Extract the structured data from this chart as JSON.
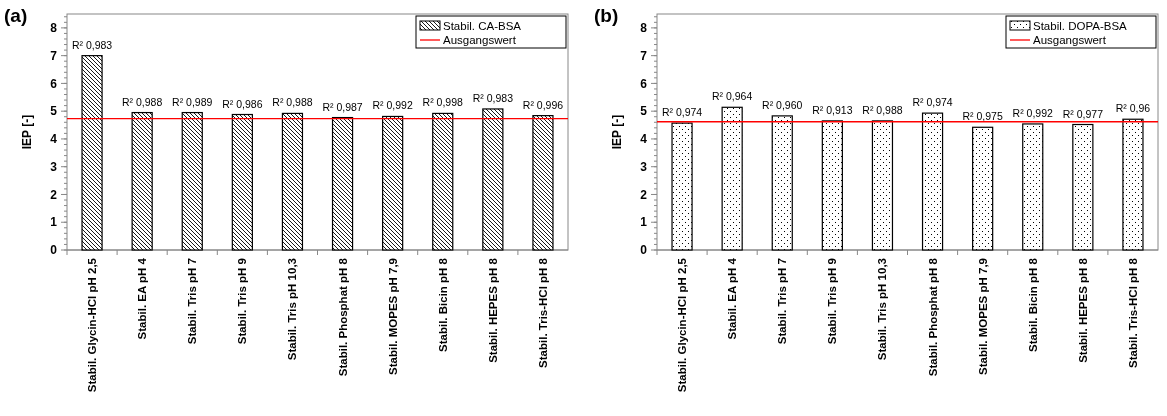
{
  "chart_data": [
    {
      "type": "bar",
      "title": "(a)",
      "ylabel": "IEP [-]",
      "categories": [
        "Stabil. Glycin-HCl pH 2,5",
        "Stabil. EA pH 4",
        "Stabil. Tris pH 7",
        "Stabil. Tris pH 9",
        "Stabil. Tris pH 10,3",
        "Stabil. Phosphat pH 8",
        "Stabil. MOPES pH 7,9",
        "Stabil. Bicin pH 8",
        "Stabil. HEPES pH 8",
        "Stabil. Tris-HCl pH 8"
      ],
      "series": [
        {
          "name": "Stabil. CA-BSA",
          "color": "#000000",
          "values": [
            7.0,
            4.95,
            4.95,
            4.88,
            4.92,
            4.77,
            4.81,
            4.92,
            5.08,
            4.84
          ],
          "value_labels": [
            "R² 0,983",
            "R² 0,988",
            "R² 0,989",
            "R² 0,986",
            "R² 0,988",
            "R² 0,987",
            "R² 0,992",
            "R² 0,998",
            "R² 0,983",
            "R² 0,996"
          ]
        }
      ],
      "ref_lines": [
        {
          "axis": "y",
          "value": 4.73,
          "label": "Ausgangswert",
          "color": "#ff0000"
        }
      ],
      "ylim": [
        0,
        8.5
      ],
      "yticks": [
        0,
        1,
        2,
        3,
        4,
        5,
        6,
        7,
        8
      ],
      "grid": false,
      "legend": "top right"
    },
    {
      "type": "bar",
      "title": "(b)",
      "ylabel": "IEP [-]",
      "categories": [
        "Stabil. Glycin-HCl pH 2,5",
        "Stabil. EA pH 4",
        "Stabil. Tris pH 7",
        "Stabil. Tris pH 9",
        "Stabil. Tris pH 10,3",
        "Stabil. Phosphat pH 8",
        "Stabil. MOPES pH 7,9",
        "Stabil. Bicin pH 8",
        "Stabil. HEPES pH 8",
        "Stabil. Tris-HCl pH 8"
      ],
      "series": [
        {
          "name": "Stabil. DOPA-BSA",
          "color": "#000000",
          "values": [
            4.57,
            5.14,
            4.83,
            4.65,
            4.65,
            4.93,
            4.42,
            4.54,
            4.52,
            4.71
          ],
          "value_labels": [
            "R² 0,974",
            "R² 0,964",
            "R² 0,960",
            "R² 0,913",
            "R² 0,988",
            "R² 0,974",
            "R² 0,975",
            "R² 0,992",
            "R² 0,977",
            "R² 0,96"
          ]
        }
      ],
      "ref_lines": [
        {
          "axis": "y",
          "value": 4.62,
          "label": "Ausgangswert",
          "color": "#ff0000"
        }
      ],
      "ylim": [
        0,
        8.5
      ],
      "yticks": [
        0,
        1,
        2,
        3,
        4,
        5,
        6,
        7,
        8
      ],
      "grid": false,
      "legend": "top right"
    }
  ]
}
